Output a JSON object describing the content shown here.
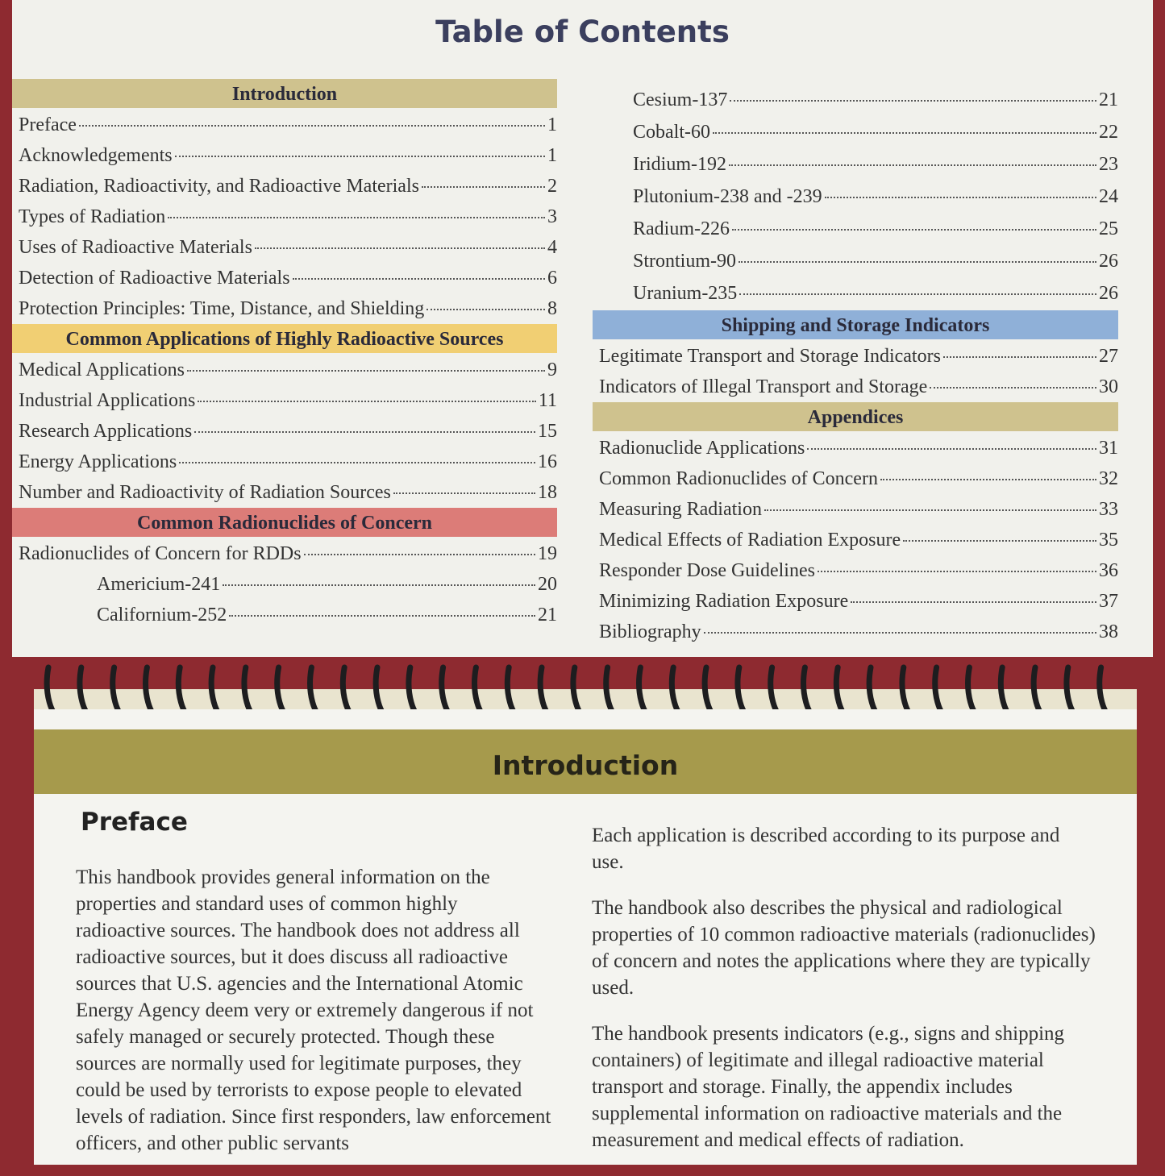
{
  "toc": {
    "title": "Table of Contents",
    "left_sections": [
      {
        "heading": "Introduction",
        "color": "#cfc28e",
        "entries": [
          {
            "label": "Preface",
            "page": 1
          },
          {
            "label": "Acknowledgements",
            "page": 1
          },
          {
            "label": "Radiation, Radioactivity, and Radioactive Materials",
            "page": 2
          },
          {
            "label": "Types of Radiation",
            "page": 3
          },
          {
            "label": "Uses of Radioactive Materials",
            "page": 4
          },
          {
            "label": "Detection of Radioactive Materials",
            "page": 6
          },
          {
            "label": "Protection Principles: Time, Distance, and Shielding",
            "page": 8
          }
        ]
      },
      {
        "heading": "Common Applications of Highly Radioactive Sources",
        "color": "#f1cf73",
        "entries": [
          {
            "label": "Medical Applications",
            "page": 9
          },
          {
            "label": "Industrial Applications",
            "page": 11
          },
          {
            "label": "Research Applications",
            "page": 15
          },
          {
            "label": "Energy Applications",
            "page": 16
          },
          {
            "label": "Number and Radioactivity of Radiation Sources",
            "page": 18
          }
        ]
      },
      {
        "heading": "Common Radionuclides of Concern",
        "color": "#dc7c78",
        "entries": [
          {
            "label": "Radionuclides of Concern for RDDs",
            "page": 19,
            "subentries": [
              {
                "label": "Americium-241",
                "page": 20
              },
              {
                "label": "Californium-252",
                "page": 21
              }
            ]
          }
        ]
      }
    ],
    "right_sections": [
      {
        "entries": [
          {
            "label": "Cesium-137",
            "page": 21
          },
          {
            "label": "Cobalt-60",
            "page": 22
          },
          {
            "label": "Iridium-192",
            "page": 23
          },
          {
            "label": "Plutonium-238 and -239",
            "page": 24
          },
          {
            "label": "Radium-226",
            "page": 25
          },
          {
            "label": "Strontium-90",
            "page": 26
          },
          {
            "label": "Uranium-235",
            "page": 26
          }
        ]
      },
      {
        "heading": "Shipping and Storage Indicators",
        "color": "#8fb0d8",
        "entries": [
          {
            "label": "Legitimate Transport and Storage Indicators",
            "page": 27
          },
          {
            "label": "Indicators of Illegal Transport and Storage",
            "page": 30
          }
        ]
      },
      {
        "heading": "Appendices",
        "color": "#cfc28e",
        "entries": [
          {
            "label": "Radionuclide Applications",
            "page": 31
          },
          {
            "label": "Common Radionuclides of Concern",
            "page": 32
          },
          {
            "label": "Measuring Radiation",
            "page": 33
          },
          {
            "label": "Medical Effects of Radiation Exposure",
            "page": 35
          },
          {
            "label": "Responder Dose Guidelines",
            "page": 36
          },
          {
            "label": "Minimizing Radiation Exposure",
            "page": 37
          },
          {
            "label": "Bibliography",
            "page": 38
          }
        ]
      }
    ]
  },
  "chapter": {
    "section_header": "Introduction",
    "heading": "Preface",
    "left_paragraphs": [
      "This handbook provides general information on the properties and standard uses of common highly radioactive sources. The handbook does not address all radioactive sources, but it does discuss all radioactive sources that U.S. agencies and the International Atomic Energy Agency deem very or extremely dangerous if not safely managed or securely protected. Though these sources are normally used for legitimate purposes, they could be used by terrorists to expose people to elevated levels of radiation. Since first responders, law enforcement officers, and other public servants"
    ],
    "right_paragraphs": [
      "Each application is described according to its purpose and use.",
      "The handbook also describes the physical and radiological properties of 10 common radioactive materials (radionuclides) of concern and notes the applications where they are typically used.",
      "The handbook presents indicators (e.g., signs and shipping containers) of legitimate and illegal radioactive material transport and storage. Finally, the appendix includes supplemental information on radioactive materials and the measurement and medical effects of radiation."
    ]
  }
}
